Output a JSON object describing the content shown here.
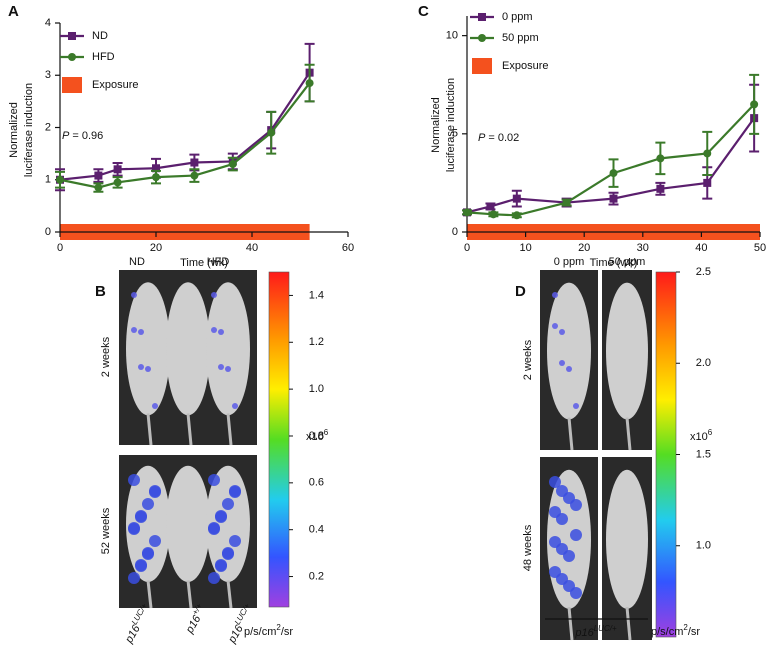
{
  "chart_data": [
    {
      "type": "line",
      "panel": "A",
      "xlabel": "Time (wk)",
      "ylabel": [
        "Normalized",
        "luciferase induction"
      ],
      "xlim": [
        0,
        60
      ],
      "xticks": [
        0,
        20,
        40,
        60
      ],
      "ylim": [
        0,
        4
      ],
      "yticks": [
        0,
        1,
        2,
        3,
        4
      ],
      "annotation": {
        "italic": "P",
        "text": " = 0.96"
      },
      "series": [
        {
          "name": "ND",
          "color": "#5b1f6e",
          "marker": "square",
          "x": [
            0,
            8,
            12,
            20,
            28,
            36,
            44,
            52
          ],
          "values": [
            1.0,
            1.08,
            1.2,
            1.22,
            1.33,
            1.35,
            1.95,
            3.05
          ],
          "errors": [
            0.2,
            0.12,
            0.12,
            0.18,
            0.15,
            0.15,
            0.35,
            0.55
          ]
        },
        {
          "name": "HFD",
          "color": "#3b7a2a",
          "marker": "circle",
          "x": [
            0,
            8,
            12,
            20,
            28,
            36,
            44,
            52
          ],
          "values": [
            1.0,
            0.85,
            0.95,
            1.05,
            1.08,
            1.3,
            1.9,
            2.85
          ],
          "errors": [
            0.15,
            0.08,
            0.1,
            0.12,
            0.12,
            0.12,
            0.4,
            0.35
          ]
        }
      ],
      "band": {
        "name": "Exposure",
        "color": "#f4511e",
        "xrange": [
          0,
          52
        ]
      }
    },
    {
      "type": "line",
      "panel": "C",
      "xlabel": "Time (wk)",
      "ylabel": [
        "Normalized",
        "luciferase induction"
      ],
      "xlim": [
        0,
        50
      ],
      "xticks": [
        0,
        10,
        20,
        30,
        40,
        50
      ],
      "ylim": [
        0,
        11
      ],
      "yticks": [
        0,
        5,
        10
      ],
      "annotation": {
        "italic": "P",
        "text": " = 0.02"
      },
      "series": [
        {
          "name": "0 ppm",
          "color": "#5b1f6e",
          "marker": "square",
          "x": [
            0,
            4,
            8.5,
            17,
            25,
            33,
            41,
            49
          ],
          "values": [
            1.0,
            1.3,
            1.7,
            1.5,
            1.7,
            2.2,
            2.5,
            5.8
          ],
          "errors": [
            0.1,
            0.15,
            0.4,
            0.2,
            0.3,
            0.3,
            0.8,
            1.7
          ]
        },
        {
          "name": "50 ppm",
          "color": "#3b7a2a",
          "marker": "circle",
          "x": [
            0,
            4.5,
            8.5,
            17,
            25,
            33,
            41,
            49
          ],
          "values": [
            1.0,
            0.9,
            0.85,
            1.5,
            3.0,
            3.75,
            4.0,
            6.5
          ],
          "errors": [
            0.1,
            0.1,
            0.1,
            0.15,
            0.7,
            0.8,
            1.1,
            1.5
          ]
        }
      ],
      "band": {
        "name": "Exposure",
        "color": "#f4511e",
        "xrange": [
          0,
          50
        ]
      }
    }
  ],
  "images": [
    {
      "panel": "B",
      "columns": [
        "ND",
        "HFD"
      ],
      "rows": [
        "2 weeks",
        "52 weeks"
      ],
      "genotypes": [
        {
          "base": "p16",
          "sup": "LUC/+"
        },
        {
          "base": "p16",
          "sup": "+/+"
        },
        {
          "base": "p16",
          "sup": "LUC/+"
        }
      ],
      "colorbar": {
        "lim": [
          0.07,
          1.5
        ],
        "ticks": [
          0.2,
          0.4,
          0.6,
          0.8,
          {
            "value": 1,
            "label": "1.0"
          },
          1.2,
          1.4
        ],
        "multiplier": {
          "base": "x10",
          "sup": "6"
        },
        "unit": {
          "base": "p/s/cm",
          "sup": "2",
          "tail": "/sr"
        }
      }
    },
    {
      "panel": "D",
      "columns": [
        "0 ppm",
        "50 ppm"
      ],
      "rows": [
        "2 weeks",
        "48 weeks"
      ],
      "genotypes": [
        {
          "base": "p16",
          "sup": "LUC/+"
        }
      ],
      "colorbar": {
        "lim": [
          0.5,
          2.5
        ],
        "ticks": [
          {
            "value": 1,
            "label": "1.0"
          },
          1.5,
          {
            "value": 2,
            "label": "2.0"
          },
          2.5
        ],
        "multiplier": {
          "base": "x10",
          "sup": "6"
        },
        "unit": {
          "base": "p/s/cm",
          "sup": "2",
          "tail": "/sr"
        }
      }
    }
  ]
}
